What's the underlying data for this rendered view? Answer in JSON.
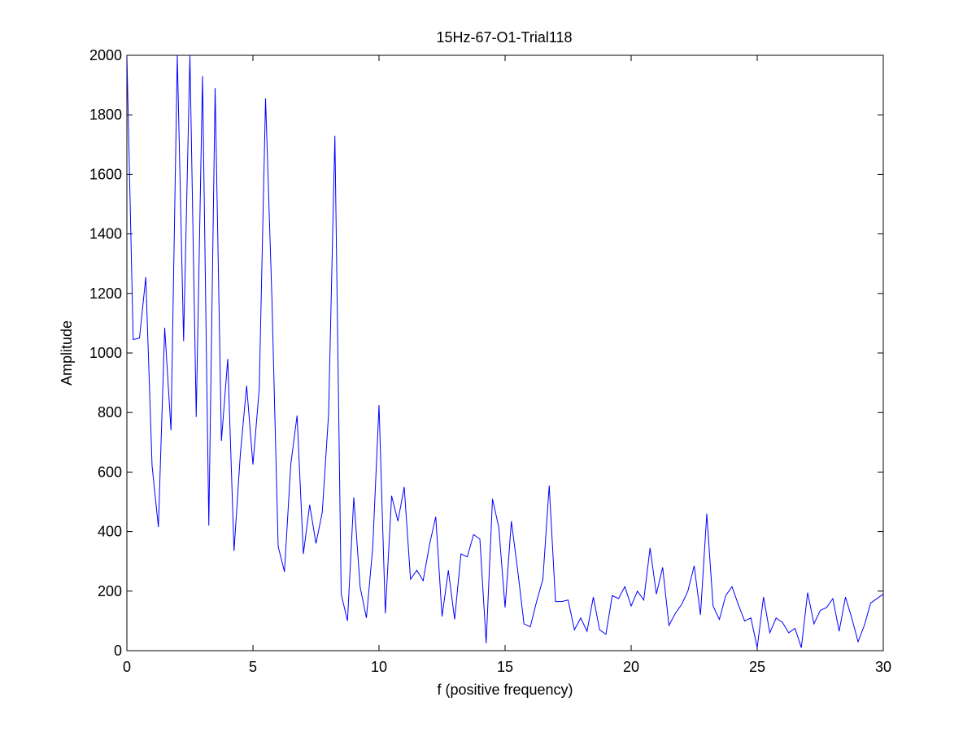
{
  "chart_data": {
    "type": "line",
    "title": "15Hz-67-O1-Trial118",
    "xlabel": "f (positive frequency)",
    "ylabel": "Amplitude",
    "xlim": [
      0,
      30
    ],
    "ylim": [
      0,
      2000
    ],
    "xticks": [
      0,
      5,
      10,
      15,
      20,
      25,
      30
    ],
    "yticks": [
      0,
      200,
      400,
      600,
      800,
      1000,
      1200,
      1400,
      1600,
      1800,
      2000
    ],
    "grid": false,
    "box": true,
    "line_color": "#0000ff",
    "series": [
      {
        "x": [
          0.0,
          0.25,
          0.5,
          0.75,
          1.0,
          1.25,
          1.5,
          1.75,
          2.0,
          2.25,
          2.5,
          2.75,
          3.0,
          3.25,
          3.5,
          3.75,
          4.0,
          4.25,
          4.5,
          4.75,
          5.0,
          5.25,
          5.5,
          5.75,
          6.0,
          6.25,
          6.5,
          6.75,
          7.0,
          7.25,
          7.5,
          7.75,
          8.0,
          8.25,
          8.5,
          8.75,
          9.0,
          9.25,
          9.5,
          9.75,
          10.0,
          10.25,
          10.5,
          10.75,
          11.0,
          11.25,
          11.5,
          11.75,
          12.0,
          12.25,
          12.5,
          12.75,
          13.0,
          13.25,
          13.5,
          13.75,
          14.0,
          14.25,
          14.5,
          14.75,
          15.0,
          15.25,
          15.5,
          15.75,
          16.0,
          16.25,
          16.5,
          16.75,
          17.0,
          17.25,
          17.5,
          17.75,
          18.0,
          18.25,
          18.5,
          18.75,
          19.0,
          19.25,
          19.5,
          19.75,
          20.0,
          20.25,
          20.5,
          20.75,
          21.0,
          21.25,
          21.5,
          21.75,
          22.0,
          22.25,
          22.5,
          22.75,
          23.0,
          23.25,
          23.5,
          23.75,
          24.0,
          24.25,
          24.5,
          24.75,
          25.0,
          25.25,
          25.5,
          25.75,
          26.0,
          26.25,
          26.5,
          26.75,
          27.0,
          27.25,
          27.5,
          27.75,
          28.0,
          28.25,
          28.5,
          28.75,
          29.0,
          29.25,
          29.5,
          29.75,
          30.0
        ],
        "y": [
          2000,
          1045,
          1050,
          1255,
          620,
          415,
          1085,
          740,
          2000,
          1040,
          2000,
          785,
          1930,
          420,
          1890,
          705,
          980,
          335,
          660,
          890,
          625,
          880,
          1855,
          1190,
          350,
          265,
          625,
          790,
          325,
          490,
          360,
          465,
          795,
          1730,
          190,
          100,
          515,
          215,
          110,
          345,
          825,
          125,
          520,
          435,
          550,
          240,
          270,
          235,
          355,
          450,
          115,
          270,
          105,
          325,
          315,
          390,
          375,
          25,
          510,
          415,
          145,
          435,
          270,
          90,
          80,
          165,
          240,
          555,
          165,
          165,
          170,
          70,
          110,
          65,
          180,
          70,
          55,
          185,
          175,
          215,
          150,
          200,
          170,
          345,
          190,
          280,
          85,
          125,
          155,
          200,
          285,
          120,
          460,
          150,
          105,
          185,
          215,
          155,
          100,
          110,
          10,
          180,
          60,
          110,
          95,
          60,
          75,
          10,
          195,
          90,
          135,
          145,
          175,
          65,
          180,
          110,
          30,
          85,
          160,
          175,
          190
        ]
      }
    ]
  }
}
